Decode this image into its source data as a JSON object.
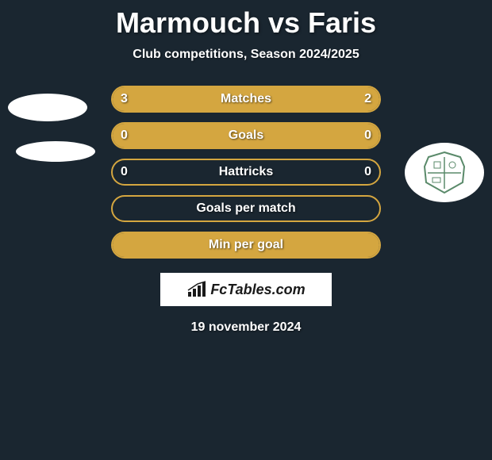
{
  "title": "Marmouch vs Faris",
  "subtitle": "Club competitions, Season 2024/2025",
  "colors": {
    "background": "#1a2630",
    "accent": "#d4a640",
    "text": "#ffffff"
  },
  "rows": [
    {
      "label": "Matches",
      "left": "3",
      "right": "2",
      "left_pct": 60,
      "right_pct": 40,
      "show_values": true
    },
    {
      "label": "Goals",
      "left": "0",
      "right": "0",
      "left_pct": 50,
      "right_pct": 50,
      "show_values": true
    },
    {
      "label": "Hattricks",
      "left": "0",
      "right": "0",
      "left_pct": 0,
      "right_pct": 0,
      "show_values": true
    },
    {
      "label": "Goals per match",
      "left": "",
      "right": "",
      "left_pct": 0,
      "right_pct": 0,
      "show_values": false
    },
    {
      "label": "Min per goal",
      "left": "",
      "right": "",
      "left_pct": 50,
      "right_pct": 50,
      "show_values": false
    }
  ],
  "brand": "FcTables.com",
  "date": "19 november 2024"
}
